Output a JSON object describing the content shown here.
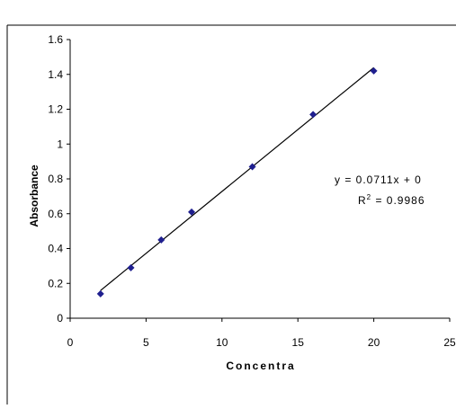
{
  "chart_data": {
    "type": "scatter",
    "title": "",
    "xlabel": "Concentra",
    "ylabel": "Absorbance",
    "xlim": [
      0,
      25
    ],
    "ylim": [
      0,
      1.6
    ],
    "x_ticks": [
      {
        "value": 0,
        "label": "0"
      },
      {
        "value": 5,
        "label": "5"
      },
      {
        "value": 10,
        "label": "10"
      },
      {
        "value": 15,
        "label": "15"
      },
      {
        "value": 20,
        "label": "20"
      },
      {
        "value": 25,
        "label": "25"
      }
    ],
    "y_ticks": [
      {
        "value": 0,
        "label": "0"
      },
      {
        "value": 0.2,
        "label": "0.2"
      },
      {
        "value": 0.4,
        "label": "0.4"
      },
      {
        "value": 0.6,
        "label": "0.6"
      },
      {
        "value": 0.8,
        "label": "0.8"
      },
      {
        "value": 1.0,
        "label": "1"
      },
      {
        "value": 1.2,
        "label": "1.2"
      },
      {
        "value": 1.4,
        "label": "1.4"
      },
      {
        "value": 1.6,
        "label": "1.6"
      }
    ],
    "grid": false,
    "legend": "none",
    "series": [
      {
        "x": [
          2,
          4,
          6,
          8,
          12,
          16,
          20
        ],
        "y": [
          0.14,
          0.29,
          0.45,
          0.61,
          0.87,
          1.17,
          1.42
        ],
        "color": "#1f1f8f"
      }
    ],
    "trendline": {
      "x": [
        2,
        20
      ],
      "y": [
        0.159,
        1.4388
      ],
      "color": "#000000"
    },
    "annotations": {
      "equation": "y = 0.0711x + 0",
      "r2_prefix": "R",
      "r2_sup": "2",
      "r2_value": " = 0.9986"
    }
  }
}
